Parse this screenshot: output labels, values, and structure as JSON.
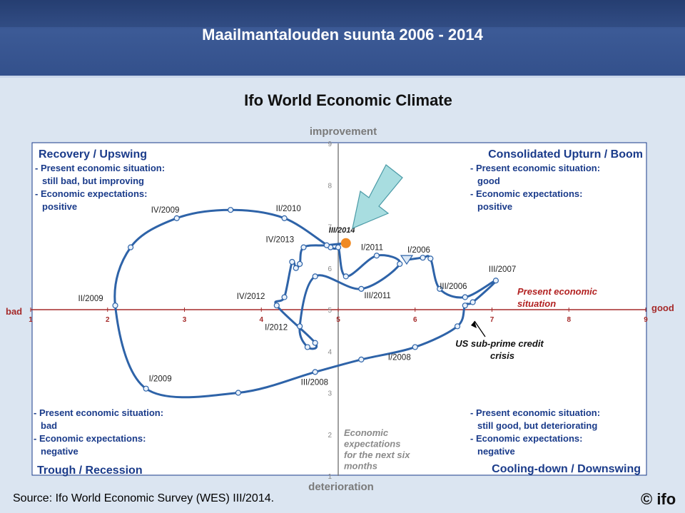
{
  "slide_title": "Maailmantalouden suunta 2006 - 2014",
  "footer": {
    "source": "Source: Ifo World Economic Survey (WES) III/2014.",
    "logo": "© ifo"
  },
  "colors": {
    "curve": "#2e63a8",
    "axis_red": "#a52a2a",
    "quadrant_text": "#1a3b8a",
    "label_red": "#b22222",
    "highlight": "#f08a24",
    "arrow": "#a8dde0"
  },
  "chart_data": {
    "type": "line",
    "title": "Ifo World Economic Climate",
    "ylabel_top": "improvement",
    "ylabel_bottom": "deterioration",
    "xlabel_left": "bad",
    "xlabel_right": "good",
    "xlim": [
      1,
      9
    ],
    "ylim": [
      1,
      9
    ],
    "x_ticks": [
      "1",
      "2",
      "3",
      "4",
      "5",
      "6",
      "7",
      "8",
      "9"
    ],
    "y_ticks": [
      "1",
      "2",
      "3",
      "4",
      "5",
      "6",
      "7",
      "8",
      "9"
    ],
    "horizontal_line_label": [
      "Present economic",
      "situation"
    ],
    "vertical_axis_label": [
      "Economic",
      "expectations",
      "for the next six",
      "months"
    ],
    "annotation": {
      "text": [
        "US sub-prime credit",
        "crisis"
      ]
    },
    "quadrants": {
      "top_left": {
        "title": "Recovery / Upswing",
        "lines": [
          "- Present economic situation:",
          "still bad, but improving",
          "- Economic expectations:",
          "positive"
        ]
      },
      "top_right": {
        "title": "Consolidated Upturn / Boom",
        "lines": [
          "- Present economic situation:",
          "good",
          "- Economic expectations:",
          "positive"
        ]
      },
      "bottom_left": {
        "title": "Trough / Recession",
        "lines": [
          "- Present economic situation:",
          "bad",
          "- Economic expectations:",
          "negative"
        ]
      },
      "bottom_right": {
        "title": "Cooling-down / Downswing",
        "lines": [
          "- Present economic situation:",
          "still good, but deteriorating",
          "- Economic expectations:",
          "negative"
        ]
      }
    },
    "series": [
      {
        "points": [
          {
            "x": 5.9,
            "y": 6.2,
            "label": "I/2006"
          },
          {
            "x": 6.1,
            "y": 6.25,
            "label": ""
          },
          {
            "x": 6.2,
            "y": 6.23,
            "label": ""
          },
          {
            "x": 6.32,
            "y": 5.5,
            "label": "III/2006"
          },
          {
            "x": 6.65,
            "y": 5.3,
            "label": ""
          },
          {
            "x": 7.05,
            "y": 5.7,
            "label": "III/2007"
          },
          {
            "x": 6.75,
            "y": 5.18,
            "label": ""
          },
          {
            "x": 6.65,
            "y": 5.1,
            "label": ""
          },
          {
            "x": 6.55,
            "y": 4.6,
            "label": ""
          },
          {
            "x": 6.0,
            "y": 4.1,
            "label": "I/2008"
          },
          {
            "x": 5.3,
            "y": 3.8,
            "label": ""
          },
          {
            "x": 4.7,
            "y": 3.5,
            "label": "III/2008"
          },
          {
            "x": 3.7,
            "y": 3.0,
            "label": ""
          },
          {
            "x": 2.5,
            "y": 3.1,
            "label": "I/2009"
          },
          {
            "x": 2.1,
            "y": 5.1,
            "label": "II/2009"
          },
          {
            "x": 2.3,
            "y": 6.5,
            "label": ""
          },
          {
            "x": 2.9,
            "y": 7.2,
            "label": "IV/2009"
          },
          {
            "x": 3.6,
            "y": 7.4,
            "label": ""
          },
          {
            "x": 4.3,
            "y": 7.2,
            "label": "II/2010"
          },
          {
            "x": 4.9,
            "y": 6.5,
            "label": ""
          },
          {
            "x": 5.0,
            "y": 6.5,
            "label": ""
          },
          {
            "x": 5.1,
            "y": 5.8,
            "label": ""
          },
          {
            "x": 5.5,
            "y": 6.3,
            "label": "I/2011"
          },
          {
            "x": 5.8,
            "y": 6.1,
            "label": ""
          },
          {
            "x": 5.3,
            "y": 5.5,
            "label": "III/2011"
          },
          {
            "x": 4.7,
            "y": 5.8,
            "label": ""
          },
          {
            "x": 4.5,
            "y": 4.6,
            "label": "I/2012"
          },
          {
            "x": 4.6,
            "y": 4.1,
            "label": ""
          },
          {
            "x": 4.7,
            "y": 4.2,
            "label": ""
          },
          {
            "x": 4.2,
            "y": 5.1,
            "label": "IV/2012"
          },
          {
            "x": 4.3,
            "y": 5.3,
            "label": ""
          },
          {
            "x": 4.4,
            "y": 6.15,
            "label": ""
          },
          {
            "x": 4.45,
            "y": 6.0,
            "label": ""
          },
          {
            "x": 4.5,
            "y": 6.1,
            "label": ""
          },
          {
            "x": 4.55,
            "y": 6.5,
            "label": "IV/2013"
          },
          {
            "x": 4.85,
            "y": 6.55,
            "label": ""
          },
          {
            "x": 5.1,
            "y": 6.6,
            "label": "III/2014"
          }
        ]
      }
    ]
  }
}
